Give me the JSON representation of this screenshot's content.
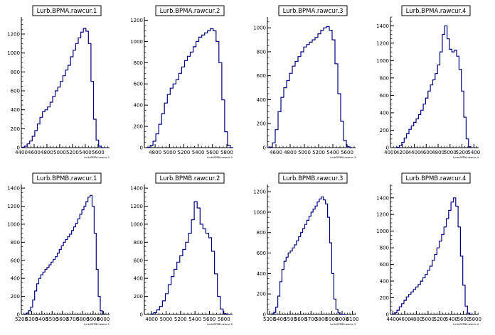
{
  "page": {
    "background": "#ffffff",
    "line_color": "#00007f",
    "axis_color": "#000000"
  },
  "chart_data": [
    {
      "type": "histogram",
      "title": "Lurb.BPMA.rawcur.1",
      "xlabel": "Lurb.BPMA.rawcur.1",
      "x_ticks": [
        4400,
        4600,
        4800,
        5000,
        5200,
        5400,
        5600
      ],
      "x_tick_labels": [
        "4400",
        "4600",
        "4800",
        "5000",
        "5200",
        "5400",
        "5600"
      ],
      "y_ticks": [
        0,
        200,
        400,
        600,
        800,
        1000,
        1200
      ],
      "y_tick_labels": [
        "0",
        "200",
        "400",
        "600",
        "800",
        "1000",
        "1200"
      ],
      "xlim": [
        4400,
        5780
      ],
      "ylim": [
        0,
        1380
      ],
      "x": [
        4430,
        4470,
        4510,
        4550,
        4590,
        4630,
        4670,
        4710,
        4750,
        4790,
        4830,
        4870,
        4910,
        4950,
        4990,
        5030,
        5070,
        5110,
        5150,
        5190,
        5230,
        5270,
        5310,
        5350,
        5390,
        5430,
        5470,
        5510,
        5550,
        5590,
        5630,
        5670
      ],
      "values": [
        5,
        15,
        40,
        70,
        120,
        180,
        250,
        320,
        380,
        400,
        430,
        480,
        540,
        600,
        640,
        700,
        760,
        820,
        870,
        960,
        1030,
        1100,
        1160,
        1220,
        1260,
        1230,
        1100,
        700,
        300,
        80,
        15,
        0
      ]
    },
    {
      "type": "histogram",
      "title": "Lurb.BPMA.rawcur.2",
      "xlabel": "Lurb.BPMA.rawcur.2",
      "x_ticks": [
        4800,
        5000,
        5200,
        5400,
        5600,
        5800
      ],
      "x_tick_labels": [
        "4800",
        "5000",
        "5200",
        "5400",
        "5600",
        "5800"
      ],
      "y_ticks": [
        0,
        200,
        400,
        600,
        800,
        1000,
        1200
      ],
      "y_tick_labels": [
        "0",
        "200",
        "400",
        "600",
        "800",
        "1000",
        "1200"
      ],
      "xlim": [
        4650,
        5880
      ],
      "ylim": [
        0,
        1230
      ],
      "x": [
        4710,
        4750,
        4790,
        4830,
        4870,
        4910,
        4950,
        4990,
        5030,
        5070,
        5110,
        5150,
        5190,
        5230,
        5270,
        5310,
        5350,
        5390,
        5430,
        5470,
        5510,
        5550,
        5590,
        5630,
        5670,
        5710,
        5750,
        5790,
        5830,
        5870
      ],
      "values": [
        3,
        20,
        60,
        130,
        220,
        320,
        420,
        500,
        560,
        600,
        640,
        700,
        760,
        820,
        860,
        900,
        950,
        1000,
        1040,
        1060,
        1080,
        1100,
        1120,
        1100,
        1000,
        800,
        450,
        150,
        20,
        0
      ]
    },
    {
      "type": "histogram",
      "title": "Lurb.BPMA.rawcur.3",
      "xlabel": "Lurb.BPMA.rawcur.3",
      "x_ticks": [
        4600,
        4800,
        5000,
        5200,
        5400,
        5600
      ],
      "x_tick_labels": [
        "4600",
        "4800",
        "5000",
        "5200",
        "5400",
        "5600"
      ],
      "y_ticks": [
        0,
        200,
        400,
        600,
        800,
        1000
      ],
      "y_tick_labels": [
        "0",
        "200",
        "400",
        "600",
        "800",
        "1000"
      ],
      "xlim": [
        4480,
        5720
      ],
      "ylim": [
        0,
        1090
      ],
      "x": [
        4530,
        4570,
        4610,
        4650,
        4690,
        4730,
        4770,
        4810,
        4850,
        4890,
        4930,
        4970,
        5010,
        5050,
        5090,
        5130,
        5170,
        5210,
        5250,
        5290,
        5330,
        5370,
        5410,
        5450,
        5490,
        5530,
        5570,
        5610,
        5650
      ],
      "values": [
        5,
        40,
        150,
        300,
        420,
        500,
        560,
        620,
        680,
        720,
        760,
        800,
        840,
        860,
        880,
        900,
        920,
        950,
        980,
        1000,
        1010,
        980,
        900,
        700,
        450,
        220,
        60,
        10,
        0
      ]
    },
    {
      "type": "histogram",
      "title": "Lurb.BPMA.rawcur.4",
      "xlabel": "Lurb.BPMA.rawcur.4",
      "x_ticks": [
        4000,
        4200,
        4400,
        4600,
        4800,
        5000,
        5200,
        5400
      ],
      "x_tick_labels": [
        "4000",
        "4200",
        "4400",
        "4600",
        "4800",
        "5000",
        "5200",
        "5400"
      ],
      "y_ticks": [
        0,
        200,
        400,
        600,
        800,
        1000,
        1200,
        1400
      ],
      "y_tick_labels": [
        "0",
        "200",
        "400",
        "600",
        "800",
        "1000",
        "1200",
        "1400"
      ],
      "xlim": [
        4000,
        5480
      ],
      "ylim": [
        0,
        1500
      ],
      "x": [
        4130,
        4170,
        4210,
        4250,
        4290,
        4330,
        4370,
        4410,
        4450,
        4490,
        4530,
        4570,
        4610,
        4650,
        4690,
        4730,
        4770,
        4810,
        4850,
        4890,
        4930,
        4970,
        5010,
        5050,
        5090,
        5130,
        5170,
        5210,
        5250,
        5290,
        5330
      ],
      "values": [
        5,
        25,
        60,
        110,
        160,
        210,
        250,
        290,
        330,
        380,
        430,
        500,
        570,
        650,
        720,
        780,
        850,
        950,
        1100,
        1300,
        1400,
        1250,
        1130,
        1100,
        1120,
        1050,
        900,
        650,
        350,
        100,
        10
      ]
    },
    {
      "type": "histogram",
      "title": "Lurb.BPMB.rawcur.1",
      "xlabel": "Lurb.BPMB.rawcur.1",
      "x_ticks": [
        5200,
        5300,
        5400,
        5500,
        5600,
        5700,
        5800,
        5900,
        6000
      ],
      "x_tick_labels": [
        "5200",
        "5300",
        "5400",
        "5500",
        "5600",
        "5700",
        "5800",
        "5900",
        "6000"
      ],
      "y_ticks": [
        0,
        200,
        400,
        600,
        800,
        1000,
        1200,
        1400
      ],
      "y_tick_labels": [
        "0",
        "200",
        "400",
        "600",
        "800",
        "1000",
        "1200",
        "1400"
      ],
      "xlim": [
        5200,
        6060
      ],
      "ylim": [
        0,
        1440
      ],
      "x": [
        5240,
        5260,
        5280,
        5300,
        5320,
        5340,
        5360,
        5380,
        5400,
        5420,
        5440,
        5460,
        5480,
        5500,
        5520,
        5540,
        5560,
        5580,
        5600,
        5620,
        5640,
        5660,
        5680,
        5700,
        5720,
        5740,
        5760,
        5780,
        5800,
        5820,
        5840,
        5860,
        5880,
        5900,
        5920,
        5940,
        5960,
        5980,
        6000
      ],
      "values": [
        5,
        15,
        40,
        80,
        160,
        260,
        340,
        400,
        440,
        470,
        500,
        520,
        550,
        580,
        610,
        640,
        680,
        720,
        760,
        800,
        830,
        860,
        890,
        930,
        970,
        1010,
        1060,
        1110,
        1160,
        1200,
        1250,
        1300,
        1320,
        1200,
        900,
        500,
        200,
        40,
        5
      ]
    },
    {
      "type": "histogram",
      "title": "Lurb.BPMB.rawcur.2",
      "xlabel": "Lurb.BPMB.rawcur.2",
      "x_ticks": [
        4800,
        5000,
        5200,
        5400,
        5600,
        5800
      ],
      "x_tick_labels": [
        "4800",
        "5000",
        "5200",
        "5400",
        "5600",
        "5800"
      ],
      "y_ticks": [
        0,
        200,
        400,
        600,
        800,
        1000,
        1200,
        1400
      ],
      "y_tick_labels": [
        "0",
        "200",
        "400",
        "600",
        "800",
        "1000",
        "1200",
        "1400"
      ],
      "xlim": [
        4700,
        5920
      ],
      "ylim": [
        0,
        1440
      ],
      "x": [
        4810,
        4850,
        4890,
        4930,
        4970,
        5010,
        5050,
        5090,
        5130,
        5170,
        5210,
        5250,
        5290,
        5330,
        5370,
        5410,
        5450,
        5490,
        5530,
        5570,
        5610,
        5650,
        5690,
        5730,
        5770,
        5810,
        5850
      ],
      "values": [
        5,
        20,
        50,
        90,
        150,
        230,
        330,
        420,
        500,
        580,
        650,
        720,
        800,
        900,
        1050,
        1250,
        1180,
        1000,
        950,
        900,
        850,
        700,
        450,
        200,
        60,
        10,
        0
      ]
    },
    {
      "type": "histogram",
      "title": "Lurb.BPMB.rawcur.3",
      "xlabel": "Lurb.BPMB.rawcur.3",
      "x_ticks": [
        5300,
        5400,
        5500,
        5600,
        5700,
        5800,
        5900,
        6000,
        6100
      ],
      "x_tick_labels": [
        "5300",
        "5400",
        "5500",
        "5600",
        "5700",
        "5800",
        "5900",
        "6000",
        "6100"
      ],
      "y_ticks": [
        0,
        200,
        400,
        600,
        800,
        1000,
        1200
      ],
      "y_tick_labels": [
        "0",
        "200",
        "400",
        "600",
        "800",
        "1000",
        "1200"
      ],
      "xlim": [
        5280,
        6130
      ],
      "ylim": [
        0,
        1270
      ],
      "x": [
        5330,
        5350,
        5370,
        5390,
        5410,
        5430,
        5450,
        5470,
        5490,
        5510,
        5530,
        5550,
        5570,
        5590,
        5610,
        5630,
        5650,
        5670,
        5690,
        5710,
        5730,
        5750,
        5770,
        5790,
        5810,
        5830,
        5850,
        5870,
        5890,
        5910,
        5930,
        5950,
        5970,
        5990,
        6010,
        6030
      ],
      "values": [
        5,
        20,
        70,
        180,
        320,
        440,
        520,
        560,
        600,
        620,
        650,
        680,
        720,
        760,
        800,
        840,
        880,
        920,
        960,
        1000,
        1030,
        1060,
        1100,
        1130,
        1150,
        1120,
        1080,
        950,
        700,
        400,
        150,
        50,
        15,
        3,
        0,
        0
      ]
    },
    {
      "type": "histogram",
      "title": "Lurb.BPMB.rawcur.4",
      "xlabel": "Lurb.BPMB.rawcur.4",
      "x_ticks": [
        4400,
        4600,
        4800,
        5000,
        5200,
        5400,
        5600,
        5800
      ],
      "x_tick_labels": [
        "4400",
        "4600",
        "4800",
        "5000",
        "5200",
        "5400",
        "5600",
        "5800"
      ],
      "y_ticks": [
        0,
        200,
        400,
        600,
        800,
        1000,
        1200,
        1400
      ],
      "y_tick_labels": [
        "0",
        "200",
        "400",
        "600",
        "800",
        "1000",
        "1200",
        "1400"
      ],
      "xlim": [
        4360,
        5860
      ],
      "ylim": [
        0,
        1560
      ],
      "x": [
        4410,
        4450,
        4490,
        4530,
        4570,
        4610,
        4650,
        4690,
        4730,
        4770,
        4810,
        4850,
        4890,
        4930,
        4970,
        5010,
        5050,
        5090,
        5130,
        5170,
        5210,
        5250,
        5290,
        5330,
        5370,
        5410,
        5450,
        5490,
        5530,
        5570,
        5610,
        5650,
        5690,
        5730
      ],
      "values": [
        5,
        20,
        50,
        90,
        130,
        170,
        210,
        240,
        270,
        300,
        330,
        360,
        400,
        440,
        480,
        530,
        580,
        650,
        720,
        800,
        880,
        960,
        1050,
        1150,
        1250,
        1350,
        1400,
        1300,
        1050,
        700,
        350,
        100,
        15,
        0
      ]
    }
  ]
}
